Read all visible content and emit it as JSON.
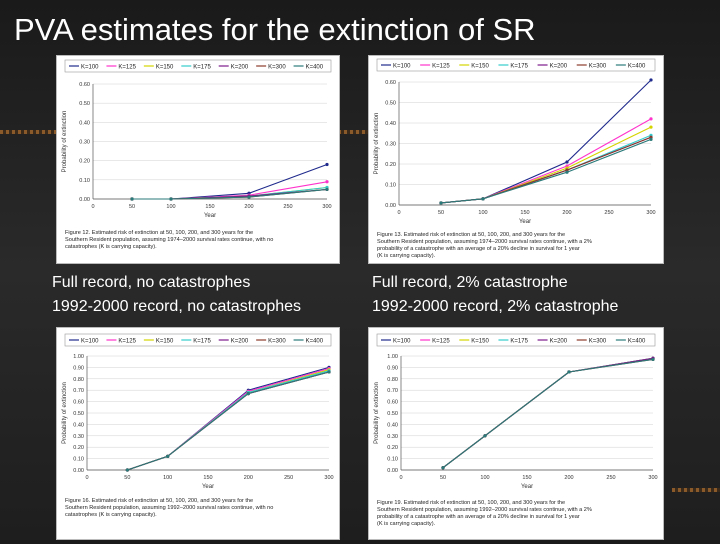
{
  "title": "PVA estimates for the extinction of SR",
  "captions": {
    "left_1": "Full record, no catastrophes",
    "left_2": "1992-2000 record, no catastrophes",
    "right_1": "Full record, 2% catastrophe",
    "right_2": "1992-2000 record, 2% catastrophe"
  },
  "legend_labels": [
    "K=100",
    "K=125",
    "K=150",
    "K=175",
    "K=200",
    "K=300",
    "K=400"
  ],
  "colors": [
    "#1f2a8c",
    "#ff33cc",
    "#d4d400",
    "#33cccc",
    "#7a1a8a",
    "#8b3a2a",
    "#2a7a7a"
  ],
  "chart_data": [
    {
      "type": "line",
      "ylabel": "Probability of extinction",
      "xlabel": "Year",
      "x": [
        50,
        100,
        200,
        300
      ],
      "xticks": [
        0,
        50,
        100,
        150,
        200,
        250,
        300
      ],
      "ylim": [
        0,
        0.6
      ],
      "yticks": [
        "0.00",
        "0.10",
        "0.20",
        "0.30",
        "0.40",
        "0.50",
        "0.60"
      ],
      "series": [
        {
          "name": "K=100",
          "values": [
            0,
            0,
            0.03,
            0.18
          ]
        },
        {
          "name": "K=125",
          "values": [
            0,
            0,
            0.02,
            0.09
          ]
        },
        {
          "name": "K=150",
          "values": [
            0,
            0,
            0.015,
            0.06
          ]
        },
        {
          "name": "K=175",
          "values": [
            0,
            0,
            0.015,
            0.06
          ]
        },
        {
          "name": "K=200",
          "values": [
            0,
            0,
            0.015,
            0.05
          ]
        },
        {
          "name": "K=300",
          "values": [
            0,
            0,
            0.01,
            0.05
          ]
        },
        {
          "name": "K=400",
          "values": [
            0,
            0,
            0.01,
            0.05
          ]
        }
      ],
      "caption": "Figure 12. Estimated risk of extinction at 50, 100, 200, and 300 years for the Southern Resident population, assuming 1974–2000 survival rates continue, with no catastrophes (K is carrying capacity)."
    },
    {
      "type": "line",
      "ylabel": "Probability of extinction",
      "xlabel": "Year",
      "x": [
        50,
        100,
        200,
        300
      ],
      "xticks": [
        0,
        50,
        100,
        150,
        200,
        250,
        300
      ],
      "ylim": [
        0,
        0.6
      ],
      "yticks": [
        "0.00",
        "0.10",
        "0.20",
        "0.30",
        "0.40",
        "0.50",
        "0.60"
      ],
      "series": [
        {
          "name": "K=100",
          "values": [
            0.01,
            0.03,
            0.21,
            0.61
          ]
        },
        {
          "name": "K=125",
          "values": [
            0.01,
            0.03,
            0.19,
            0.42
          ]
        },
        {
          "name": "K=150",
          "values": [
            0.01,
            0.03,
            0.18,
            0.38
          ]
        },
        {
          "name": "K=175",
          "values": [
            0.01,
            0.03,
            0.17,
            0.34
          ]
        },
        {
          "name": "K=200",
          "values": [
            0.01,
            0.03,
            0.17,
            0.33
          ]
        },
        {
          "name": "K=300",
          "values": [
            0.01,
            0.03,
            0.17,
            0.33
          ]
        },
        {
          "name": "K=400",
          "values": [
            0.01,
            0.03,
            0.16,
            0.32
          ]
        }
      ],
      "caption": "Figure 13. Estimated risk of extinction at 50, 100, 200, and 300 years for the Southern Resident population, assuming 1974–2000 survival rates continue, with a 2% probability of a catastrophe with an average of a 20% decline in survival for 1 year (K is carrying capacity)."
    },
    {
      "type": "line",
      "ylabel": "Probability of extinction",
      "xlabel": "Year",
      "x": [
        50,
        100,
        200,
        300
      ],
      "xticks": [
        0,
        50,
        100,
        150,
        200,
        250,
        300
      ],
      "ylim": [
        0,
        1.0
      ],
      "yticks": [
        "0.00",
        "0.10",
        "0.20",
        "0.30",
        "0.40",
        "0.50",
        "0.60",
        "0.70",
        "0.80",
        "0.90",
        "1.00"
      ],
      "series": [
        {
          "name": "K=100",
          "values": [
            0,
            0.12,
            0.7,
            0.9
          ]
        },
        {
          "name": "K=125",
          "values": [
            0,
            0.12,
            0.69,
            0.89
          ]
        },
        {
          "name": "K=150",
          "values": [
            0,
            0.12,
            0.68,
            0.88
          ]
        },
        {
          "name": "K=175",
          "values": [
            0,
            0.12,
            0.68,
            0.87
          ]
        },
        {
          "name": "K=200",
          "values": [
            0,
            0.12,
            0.67,
            0.86
          ]
        },
        {
          "name": "K=300",
          "values": [
            0,
            0.12,
            0.67,
            0.86
          ]
        },
        {
          "name": "K=400",
          "values": [
            0,
            0.12,
            0.67,
            0.86
          ]
        }
      ],
      "caption": "Figure 16. Estimated risk of extinction at 50, 100, 200, and 300 years for the Southern Resident population, assuming 1992–2000 survival rates continue, with no catastrophes (K is carrying capacity)."
    },
    {
      "type": "line",
      "ylabel": "Probability of extinction",
      "xlabel": "Year",
      "x": [
        50,
        100,
        200,
        300
      ],
      "xticks": [
        0,
        50,
        100,
        150,
        200,
        250,
        300
      ],
      "ylim": [
        0,
        1.0
      ],
      "yticks": [
        "0.00",
        "0.10",
        "0.20",
        "0.30",
        "0.40",
        "0.50",
        "0.60",
        "0.70",
        "0.80",
        "0.90",
        "1.00"
      ],
      "series": [
        {
          "name": "K=100",
          "values": [
            0.02,
            0.3,
            0.86,
            0.98
          ]
        },
        {
          "name": "K=125",
          "values": [
            0.02,
            0.3,
            0.86,
            0.98
          ]
        },
        {
          "name": "K=150",
          "values": [
            0.02,
            0.3,
            0.86,
            0.98
          ]
        },
        {
          "name": "K=175",
          "values": [
            0.02,
            0.3,
            0.86,
            0.98
          ]
        },
        {
          "name": "K=200",
          "values": [
            0.02,
            0.3,
            0.86,
            0.98
          ]
        },
        {
          "name": "K=300",
          "values": [
            0.02,
            0.3,
            0.86,
            0.97
          ]
        },
        {
          "name": "K=400",
          "values": [
            0.02,
            0.3,
            0.86,
            0.97
          ]
        }
      ],
      "caption": "Figure 19. Estimated risk of extinction at 50, 100, 200, and 300 years for the Southern Resident population, assuming 1992–2000 survival rates continue, with a 2% probability of a catastrophe with an average of a 20% decline in survival for 1 year (K is carrying capacity)."
    }
  ]
}
